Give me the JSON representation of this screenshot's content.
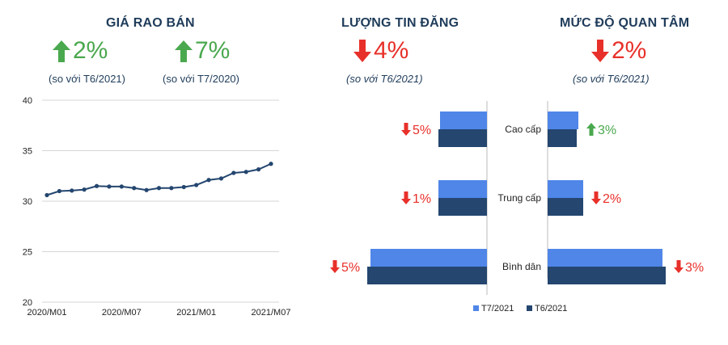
{
  "colors": {
    "green": "#4aa84e",
    "red": "#e8302a",
    "navy": "#1f3c5a",
    "light_bar": "#4f86e8",
    "dark_bar": "#24466f",
    "line": "#24466f"
  },
  "left": {
    "title": "GIÁ RAO BÁN",
    "kpi1": {
      "direction": "up",
      "value": "2%",
      "note": "(so với T6/2021)"
    },
    "kpi2": {
      "direction": "up",
      "value": "7%",
      "note": "(so với T7/2020)"
    }
  },
  "middle": {
    "title": "LƯỢNG TIN ĐĂNG",
    "kpi": {
      "direction": "down",
      "value": "4%",
      "note": "(so với T6/2021)"
    }
  },
  "right": {
    "title": "MỨC ĐỘ QUAN TÂM",
    "kpi": {
      "direction": "down",
      "value": "2%",
      "note": "(so với T6/2021)"
    }
  },
  "chart_data": [
    {
      "type": "line",
      "x": [
        "2020/M01",
        "2020/M02",
        "2020/M03",
        "2020/M04",
        "2020/M05",
        "2020/M06",
        "2020/M07",
        "2020/M08",
        "2020/M09",
        "2020/M10",
        "2020/M11",
        "2020/M12",
        "2021/M01",
        "2021/M02",
        "2021/M03",
        "2021/M04",
        "2021/M05",
        "2021/M06",
        "2021/M07"
      ],
      "values": [
        30.6,
        31.0,
        31.05,
        31.15,
        31.5,
        31.45,
        31.45,
        31.3,
        31.1,
        31.3,
        31.3,
        31.4,
        31.6,
        32.1,
        32.25,
        32.8,
        32.9,
        33.15,
        33.7
      ],
      "yticks": [
        20,
        25,
        30,
        35,
        40
      ],
      "xtick_labels": [
        "2020/M01",
        "2020/M07",
        "2021/M01",
        "2021/M07"
      ],
      "ylim": [
        20,
        40
      ],
      "grid": true
    },
    {
      "type": "bar",
      "orientation": "horizontal",
      "categories": [
        "Cao cấp",
        "Trung cấp",
        "Bình dân"
      ],
      "series": [
        {
          "name": "T7/2021",
          "listings": [
            29,
            30,
            72
          ],
          "interest": [
            19,
            22,
            71
          ]
        },
        {
          "name": "T6/2021",
          "listings": [
            30,
            30,
            74
          ],
          "interest": [
            18,
            22,
            73
          ]
        }
      ],
      "listings_change": [
        {
          "direction": "down",
          "label": "5%"
        },
        {
          "direction": "down",
          "label": "1%"
        },
        {
          "direction": "down",
          "label": "5%"
        }
      ],
      "interest_change": [
        {
          "direction": "up",
          "label": "3%"
        },
        {
          "direction": "down",
          "label": "2%"
        },
        {
          "direction": "down",
          "label": "3%"
        }
      ],
      "legend_position": "bottom"
    }
  ]
}
